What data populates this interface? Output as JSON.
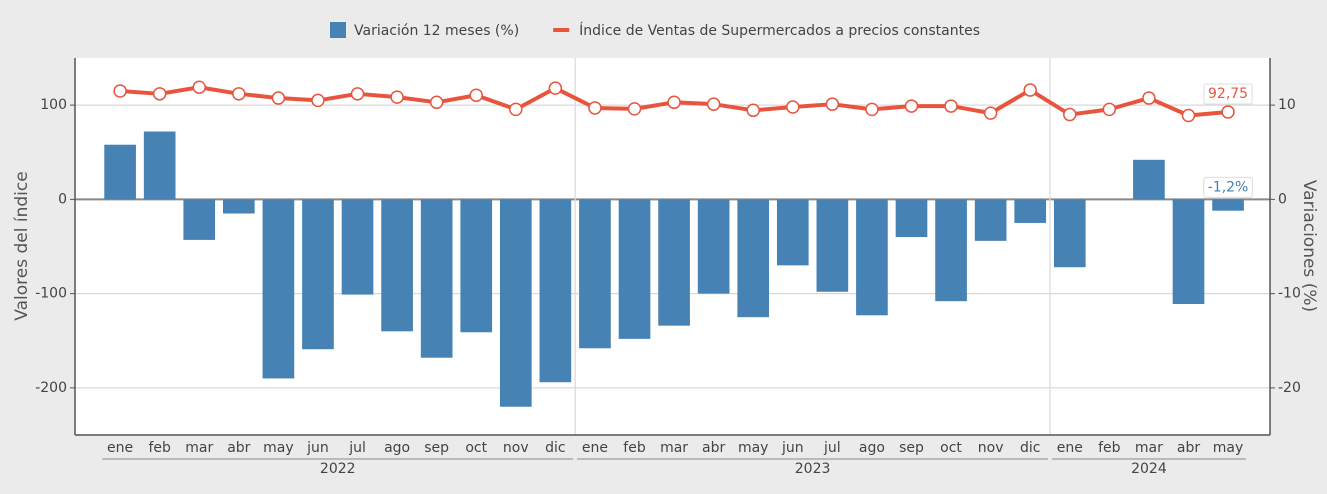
{
  "chart_data": {
    "type": "bar_line",
    "ylabel": "Valores del índice",
    "y2label": "Variaciones (%)",
    "year_groups": [
      {
        "label": "2022",
        "months": [
          "ene",
          "feb",
          "mar",
          "abr",
          "may",
          "jun",
          "jul",
          "ago",
          "sep",
          "oct",
          "nov",
          "dic"
        ]
      },
      {
        "label": "2023",
        "months": [
          "ene",
          "feb",
          "mar",
          "abr",
          "may",
          "jun",
          "jul",
          "ago",
          "sep",
          "oct",
          "nov",
          "dic"
        ]
      },
      {
        "label": "2024",
        "months": [
          "ene",
          "feb",
          "mar",
          "abr",
          "may"
        ]
      }
    ],
    "ylim": [
      -250,
      150
    ],
    "yticks": [
      -200,
      -100,
      0,
      100
    ],
    "y2lim": [
      -25,
      15
    ],
    "y2ticks": [
      -20,
      -10,
      0,
      10
    ],
    "grid": true,
    "series": [
      {
        "name": "Variación 12 meses (%)",
        "type": "bar",
        "axis": "y2",
        "color": "#4682b4",
        "values": [
          5.8,
          7.2,
          -4.3,
          -1.5,
          -19.0,
          -15.9,
          -10.1,
          -14.0,
          -16.8,
          -14.1,
          -22.0,
          -19.4,
          -15.8,
          -14.8,
          -13.4,
          -10.0,
          -12.5,
          -7.0,
          -9.8,
          -12.3,
          -4.0,
          -10.8,
          -4.4,
          -2.5,
          -7.2,
          0,
          4.2,
          -11.1,
          -1.2
        ],
        "value_labels": [
          null,
          null,
          null,
          null,
          null,
          null,
          null,
          null,
          null,
          null,
          null,
          null,
          null,
          null,
          null,
          null,
          null,
          null,
          null,
          null,
          null,
          null,
          null,
          null,
          null,
          null,
          null,
          null,
          "-1,2%"
        ]
      },
      {
        "name": "Índice de Ventas de Supermercados a precios constantes",
        "type": "line",
        "axis": "y",
        "color": "#e8553f",
        "values": [
          115,
          112,
          119,
          112,
          107.5,
          105,
          112,
          108.5,
          103,
          110.5,
          95.5,
          118,
          97,
          96,
          103,
          101,
          94.5,
          98,
          101,
          95.5,
          99,
          99,
          91.5,
          116,
          90,
          95.5,
          107.5,
          89,
          92.75
        ],
        "value_labels": [
          null,
          null,
          null,
          null,
          null,
          null,
          null,
          null,
          null,
          null,
          null,
          null,
          null,
          null,
          null,
          null,
          null,
          null,
          null,
          null,
          null,
          null,
          null,
          null,
          null,
          null,
          null,
          null,
          "92,75"
        ]
      }
    ]
  }
}
